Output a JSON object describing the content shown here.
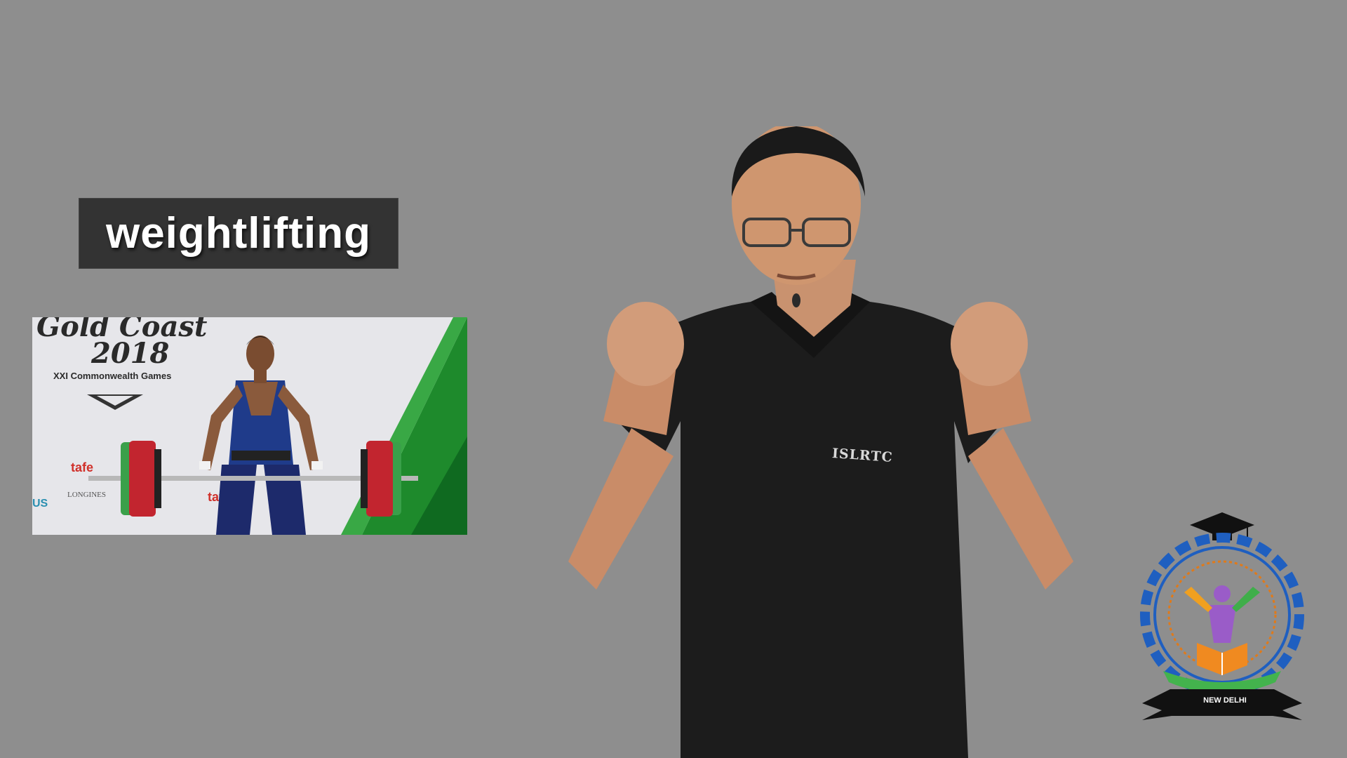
{
  "caption": {
    "word": "weightlifting"
  },
  "photo": {
    "event_line1": "Gold Coast",
    "event_line2": "2018",
    "event_line3": "XXI Commonwealth Games"
  },
  "presenter": {
    "shirt_text": "ISLRTC"
  },
  "logo": {
    "city": "NEW DELHI"
  },
  "colors": {
    "background": "#8e8e8e",
    "caption_bg": "#333333",
    "caption_text": "#ffffff"
  }
}
